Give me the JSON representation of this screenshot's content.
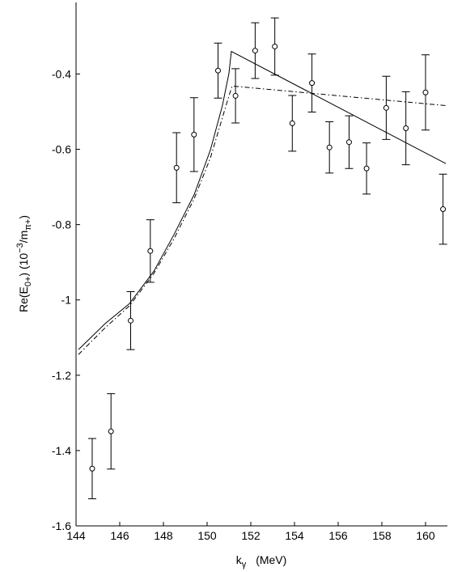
{
  "chart_data": {
    "type": "line",
    "x_label": [
      "k",
      "γ",
      "(MeV)"
    ],
    "y_label": [
      "Re(E",
      "0+",
      ")  (10",
      "−3",
      "/m",
      "π+",
      ")"
    ],
    "xlim": [
      144,
      161
    ],
    "ylim": [
      -1.6,
      -0.21
    ],
    "xticks": [
      144,
      146,
      148,
      150,
      152,
      154,
      156,
      158,
      160
    ],
    "yticks": [
      -1.6,
      -1.4,
      -1.2,
      -1,
      -0.8,
      -0.6,
      -0.4
    ],
    "series": [
      {
        "style": "points",
        "color": "#000000",
        "x": [
          144.74,
          145.6,
          146.5,
          147.4,
          148.6,
          149.4,
          150.5,
          151.3,
          152.2,
          153.1,
          153.9,
          154.8,
          155.6,
          156.5,
          157.3,
          158.2,
          159.1,
          160.0,
          160.8
        ],
        "values": [
          -1.448,
          -1.349,
          -1.055,
          -0.87,
          -0.649,
          -0.561,
          -0.391,
          -0.458,
          -0.338,
          -0.327,
          -0.531,
          -0.424,
          -0.595,
          -0.581,
          -0.651,
          -0.49,
          -0.544,
          -0.449,
          -0.759
        ],
        "errors": [
          0.08,
          0.1,
          0.077,
          0.083,
          0.093,
          0.098,
          0.073,
          0.072,
          0.074,
          0.076,
          0.074,
          0.077,
          0.068,
          0.07,
          0.068,
          0.084,
          0.097,
          0.1,
          0.093
        ]
      },
      {
        "style": "solid",
        "color": "#000000",
        "x": [
          144.11,
          145.33,
          146.44,
          147.56,
          148.48,
          149.41,
          150.15,
          150.7,
          151.0,
          151.11,
          160.93
        ],
        "values": [
          -1.132,
          -1.063,
          -1.01,
          -0.924,
          -0.827,
          -0.72,
          -0.602,
          -0.484,
          -0.398,
          -0.34,
          -0.638
        ]
      },
      {
        "style": "dashdot",
        "color": "#000000",
        "x": [
          144.11,
          145.33,
          146.44,
          147.56,
          148.48,
          149.41,
          150.15,
          150.7,
          151.0,
          151.15,
          160.93
        ],
        "values": [
          -1.145,
          -1.074,
          -1.016,
          -0.93,
          -0.838,
          -0.731,
          -0.623,
          -0.516,
          -0.458,
          -0.432,
          -0.484
        ]
      }
    ]
  }
}
